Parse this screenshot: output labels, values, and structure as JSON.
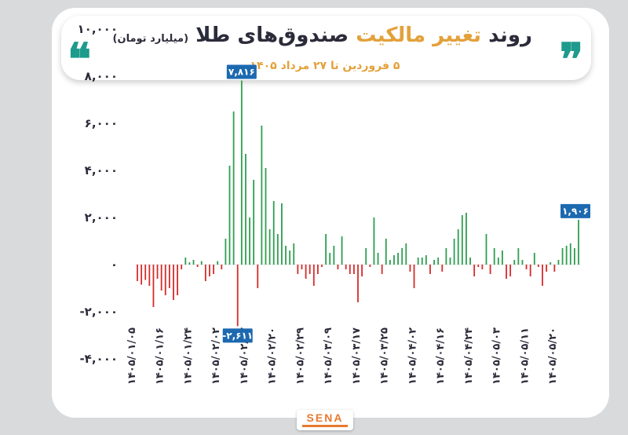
{
  "header": {
    "title_part1": "روند",
    "title_part2": "تغییر مالکیت",
    "title_part3": "صندوق‌های طلا",
    "title_unit": "(میلیارد تومان)",
    "subtitle": "۵ فروردین تا ۲۷ مرداد ۱۴۰۵",
    "quote_left": "❝",
    "quote_right": "❞",
    "accent_color": "#e3a13b",
    "teal_color": "#1e9b8c"
  },
  "logo": {
    "text": "SENA"
  },
  "chart_data": {
    "type": "bar",
    "title": "روند تغییر مالکیت صندوق‌های طلا",
    "subtitle": "۵ فروردین تا ۲۷ مرداد ۱۴۰۵",
    "ylabel": "",
    "xlabel": "",
    "ylim": [
      -4000,
      10000
    ],
    "yticks": [
      -4000,
      -2000,
      0,
      2000,
      4000,
      6000,
      8000,
      10000
    ],
    "ytick_labels": [
      "-۴,۰۰۰",
      "-۲,۰۰۰",
      "۰",
      "۲,۰۰۰",
      "۴,۰۰۰",
      "۶,۰۰۰",
      "۸,۰۰۰",
      "۱۰,۰۰۰"
    ],
    "xtick_labels": [
      "۱۴۰۵/۰۱/۰۵",
      "۱۴۰۵/۰۱/۱۶",
      "۱۴۰۵/۰۱/۲۴",
      "۱۴۰۵/۰۲/۰۲",
      "۱۴۰۵/۰۲/۱۲",
      "۱۴۰۵/۰۲/۲۰",
      "۱۴۰۵/۰۲/۲۹",
      "۱۴۰۵/۰۳/۰۹",
      "۱۴۰۵/۰۳/۱۷",
      "۱۴۰۵/۰۳/۲۵",
      "۱۴۰۵/۰۴/۰۲",
      "۱۴۰۵/۰۴/۱۶",
      "۱۴۰۵/۰۴/۲۴",
      "۱۴۰۵/۰۵/۰۳",
      "۱۴۰۵/۰۵/۱۱",
      "۱۴۰۵/۰۵/۲۰"
    ],
    "grid": false,
    "legend": "none",
    "positive_color": "#2e9e4f",
    "negative_color": "#d62b2b",
    "values": [
      -700,
      -850,
      -650,
      -900,
      -1800,
      -600,
      -1100,
      -1300,
      -1000,
      -1500,
      -1300,
      -200,
      300,
      100,
      200,
      -100,
      150,
      -700,
      -500,
      -400,
      150,
      -200,
      1100,
      4200,
      6500,
      -2611,
      7816,
      4700,
      2000,
      3600,
      -1000,
      5900,
      4100,
      1500,
      2700,
      1300,
      2600,
      800,
      600,
      900,
      -400,
      -200,
      -600,
      -400,
      -900,
      -400,
      -100,
      1300,
      500,
      800,
      -200,
      1200,
      -200,
      -400,
      -400,
      -1600,
      -500,
      700,
      -100,
      2000,
      500,
      -400,
      1100,
      200,
      400,
      500,
      700,
      900,
      -300,
      -1000,
      300,
      300,
      400,
      -400,
      200,
      300,
      -300,
      700,
      300,
      1100,
      1500,
      2100,
      2200,
      300,
      -500,
      -100,
      -200,
      1300,
      -400,
      700,
      300,
      600,
      -600,
      -500,
      200,
      700,
      200,
      -200,
      -500,
      500,
      -100,
      -900,
      -300,
      100,
      -300,
      200,
      700,
      800,
      900,
      700,
      1906
    ],
    "annotations": [
      {
        "label": "۷,۸۱۶",
        "value": 7816,
        "index": 26
      },
      {
        "label": "-۲,۶۱۱",
        "value": -2611,
        "index": 25
      },
      {
        "label": "۱,۹۰۶",
        "value": 1906,
        "index": 110
      }
    ]
  }
}
